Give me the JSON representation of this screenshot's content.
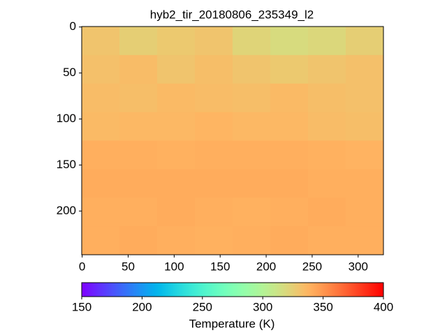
{
  "chart_data": {
    "type": "heatmap",
    "title": "hyb2_tir_20180806_235349_l2",
    "xlim": [
      -0.5,
      327.5
    ],
    "xticks": [
      0,
      50,
      100,
      150,
      200,
      250,
      300
    ],
    "ylim": [
      247.5,
      -0.5
    ],
    "yticks": [
      0,
      50,
      100,
      150,
      200
    ],
    "colormap": "rainbow",
    "clim": [
      150,
      400
    ],
    "cticks": [
      150,
      200,
      250,
      300,
      350,
      400
    ],
    "colorbar_label": "Temperature (K)",
    "values": [
      [
        330,
        325,
        328,
        330,
        322,
        318,
        320,
        325
      ],
      [
        332,
        334,
        330,
        333,
        330,
        328,
        330,
        332
      ],
      [
        334,
        333,
        335,
        334,
        333,
        335,
        333,
        332
      ],
      [
        335,
        336,
        336,
        337,
        336,
        336,
        334,
        333
      ],
      [
        340,
        340,
        339,
        340,
        340,
        340,
        339,
        338
      ],
      [
        341,
        341,
        341,
        341,
        341,
        341,
        340,
        340
      ],
      [
        340,
        340,
        341,
        340,
        339,
        340,
        341,
        340
      ],
      [
        340,
        341,
        340,
        339,
        340,
        341,
        340,
        340
      ]
    ]
  }
}
